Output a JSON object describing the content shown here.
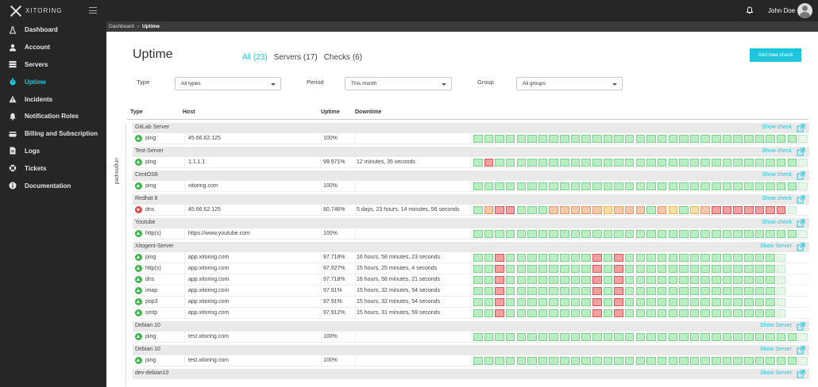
{
  "app": {
    "logo_text": "XITORING"
  },
  "sidebar": {
    "items": [
      {
        "label": "Dashboard",
        "icon": "flask-icon",
        "active": false
      },
      {
        "label": "Account",
        "icon": "user-icon",
        "active": false
      },
      {
        "label": "Servers",
        "icon": "server-icon",
        "active": false
      },
      {
        "label": "Uptime",
        "icon": "stopwatch-icon",
        "active": true
      },
      {
        "label": "Incidents",
        "icon": "warning-icon",
        "active": false
      },
      {
        "label": "Notification Roles",
        "icon": "bell-icon",
        "active": false
      },
      {
        "label": "Billing and Subscription",
        "icon": "billing-icon",
        "active": false
      },
      {
        "label": "Logs",
        "icon": "file-icon",
        "active": false
      },
      {
        "label": "Tickets",
        "icon": "lifebuoy-icon",
        "active": false
      },
      {
        "label": "Documentation",
        "icon": "info-icon",
        "active": false
      }
    ]
  },
  "topbar": {
    "user_name": "John Doe"
  },
  "breadcrumb": {
    "root": "Dashboard",
    "current": "Uptime"
  },
  "header": {
    "title": "Uptime",
    "tabs": [
      {
        "label": "All (23)",
        "active": true
      },
      {
        "label": "Servers (17)",
        "active": false
      },
      {
        "label": "Checks (6)",
        "active": false
      }
    ],
    "add_button": "Add new check"
  },
  "filters": {
    "type": {
      "label": "Type",
      "value": "All types"
    },
    "period": {
      "label": "Period",
      "value": "This month"
    },
    "group": {
      "label": "Group",
      "value": "All groups"
    }
  },
  "table": {
    "columns": {
      "type": "Type",
      "host": "Host",
      "uptime": "Uptime",
      "downtime": "Downtime"
    },
    "side_label": "ungrouped",
    "groups": [
      {
        "name": "GitLab Server",
        "link": "Show check",
        "checks": [
          {
            "type": "ping",
            "host": "45.66.62.125",
            "uptime": "100%",
            "downtime": "",
            "status": "up",
            "bars": "gggggggggggggggggggggggggggggge"
          }
        ]
      },
      {
        "name": "Test-Server",
        "link": "Show check",
        "checks": [
          {
            "type": "ping",
            "host": "1.1.1.1",
            "uptime": "99.971%",
            "downtime": "12 minutes, 35 seconds",
            "status": "up",
            "bars": "grgggggggggggggggggggggggggggge"
          }
        ]
      },
      {
        "name": "CentOS6",
        "link": "Show check",
        "checks": [
          {
            "type": "ping",
            "host": "xitoring.com",
            "uptime": "100%",
            "downtime": "",
            "status": "up",
            "bars": "gggggggggggggggggggggggggggggge"
          }
        ]
      },
      {
        "name": "Redhat 8",
        "link": "Show check",
        "checks": [
          {
            "type": "dns",
            "host": "45.66.62.125",
            "uptime": "80.746%",
            "downtime": "5 days, 23 hours, 14 minutes, 56 seconds",
            "status": "down",
            "bars": "gorrgggoooooyooogoygyorrrrrrre"
          }
        ]
      },
      {
        "name": "Youtube",
        "link": "Show check",
        "checks": [
          {
            "type": "http(s)",
            "host": "https://www.youtube.com",
            "uptime": "100%",
            "downtime": "",
            "status": "up",
            "bars": "gggggggggggggggggggggggggggggge"
          }
        ]
      },
      {
        "name": "Xitogent-Server",
        "link": "Show Server",
        "checks": [
          {
            "type": "ping",
            "host": "app.xitoring.com",
            "uptime": "97.718%",
            "downtime": "16 hours, 58 minutes, 23 seconds",
            "status": "up",
            "bars": "ggrggggggggrgrgggggggggggggge"
          },
          {
            "type": "http(s)",
            "host": "app.xitoring.com",
            "uptime": "97.927%",
            "downtime": "15 hours, 25 minutes, 4 seconds",
            "status": "up",
            "bars": "ggrggggggggrgrgggggggggggggge"
          },
          {
            "type": "dns",
            "host": "app.xitoring.com",
            "uptime": "97.718%",
            "downtime": "16 hours, 58 minutes, 21 seconds",
            "status": "up",
            "bars": "ggrggggggggrgrgggggggggggggge"
          },
          {
            "type": "imap",
            "host": "app.xitoring.com",
            "uptime": "97.91%",
            "downtime": "15 hours, 32 minutes, 54 seconds",
            "status": "up",
            "bars": "ggrggggggggrgrgggggggggggggge"
          },
          {
            "type": "pop3",
            "host": "app.xitoring.com",
            "uptime": "97.91%",
            "downtime": "15 hours, 32 minutes, 54 seconds",
            "status": "up",
            "bars": "ggrggggggggrgrgggggggggggggge"
          },
          {
            "type": "smtp",
            "host": "app.xitoring.com",
            "uptime": "97.912%",
            "downtime": "15 hours, 31 minutes, 59 seconds",
            "status": "up",
            "bars": "ggrggggggggrgrgggggggggggggge"
          }
        ]
      },
      {
        "name": "Debian 10",
        "link": "Show Server",
        "checks": [
          {
            "type": "ping",
            "host": "test.xitoring.com",
            "uptime": "100%",
            "downtime": "",
            "status": "up",
            "bars": "gggggggggggggggggggggggggggggge"
          }
        ]
      },
      {
        "name": "Debian 10",
        "link": "Show Server",
        "checks": [
          {
            "type": "ping",
            "host": "test.xitoring.com",
            "uptime": "100%",
            "downtime": "",
            "status": "up",
            "bars": "gggggggggggggggggggggggggggggge"
          }
        ]
      },
      {
        "name": "dev-debian10",
        "link": "Show Server",
        "checks": []
      }
    ]
  }
}
